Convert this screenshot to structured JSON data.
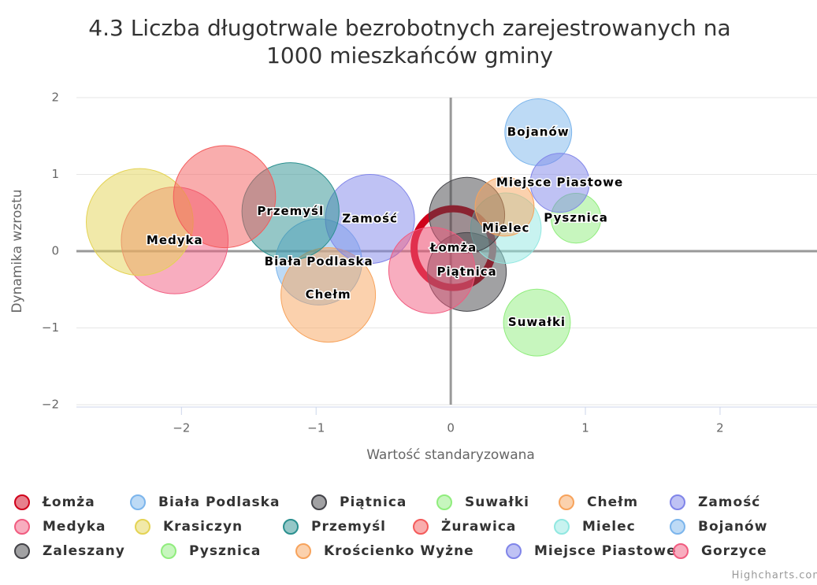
{
  "chart_data": {
    "type": "bubble",
    "title": [
      "4.3 Liczba długotrwale bezrobotnych zarejestrowanych na",
      "1000 mieszkańców gminy"
    ],
    "x_label": "Wartość standaryzowana",
    "y_label": "Dynamika wzrostu",
    "xlim": [
      -2.78,
      2.72
    ],
    "ylim": [
      -2,
      2
    ],
    "xticks": [
      {
        "value": -2,
        "label": "−2"
      },
      {
        "value": -1,
        "label": "−1"
      },
      0,
      1,
      2
    ],
    "yticks": [
      {
        "value": -2,
        "label": "−2"
      },
      {
        "value": -1,
        "label": "−1"
      },
      0,
      1,
      2
    ],
    "grid": true,
    "credits": "Highcharts.com",
    "series": [
      {
        "name": "Łomża",
        "color": "#d0021b",
        "x": 0.02,
        "y": 0.04,
        "z": 25,
        "data_label": true,
        "selected": true
      },
      {
        "name": "Biała Podlaska",
        "color": "#7cb5ec",
        "x": -0.98,
        "y": -0.14,
        "z": 30,
        "data_label": true
      },
      {
        "name": "Piątnica",
        "color": "#434348",
        "x": 0.12,
        "y": -0.27,
        "z": 25,
        "data_label": true
      },
      {
        "name": "Suwałki",
        "color": "#90ed7d",
        "x": 0.64,
        "y": -0.93,
        "z": 18,
        "data_label": true
      },
      {
        "name": "Chełm",
        "color": "#f7a35c",
        "x": -0.91,
        "y": -0.57,
        "z": 36,
        "data_label": true
      },
      {
        "name": "Zamość",
        "color": "#8085e9",
        "x": -0.6,
        "y": 0.42,
        "z": 32,
        "data_label": true
      },
      {
        "name": "Medyka",
        "color": "#f15c80",
        "x": -2.05,
        "y": 0.14,
        "z": 46,
        "data_label": true
      },
      {
        "name": "Krasiczyn",
        "color": "#e4d354",
        "x": -2.31,
        "y": 0.38,
        "z": 46,
        "data_label": false
      },
      {
        "name": "Przemyśl",
        "color": "#2b908f",
        "x": -1.19,
        "y": 0.52,
        "z": 38,
        "data_label": true
      },
      {
        "name": "Żurawica",
        "color": "#f45b5b",
        "x": -1.68,
        "y": 0.71,
        "z": 42,
        "data_label": false
      },
      {
        "name": "Mielec",
        "color": "#91e8e1",
        "x": 0.41,
        "y": 0.3,
        "z": 20,
        "data_label": true
      },
      {
        "name": "Bojanów",
        "color": "#7cb5ec",
        "x": 0.65,
        "y": 1.55,
        "z": 18,
        "data_label": true
      },
      {
        "name": "Zaleszany",
        "color": "#434348",
        "x": 0.12,
        "y": 0.47,
        "z": 23,
        "data_label": false
      },
      {
        "name": "Pysznica",
        "color": "#90ed7d",
        "x": 0.93,
        "y": 0.43,
        "z": 10,
        "data_label": true
      },
      {
        "name": "Krościenko Wyżne",
        "color": "#f7a35c",
        "x": 0.4,
        "y": 0.58,
        "z": 14,
        "data_label": false
      },
      {
        "name": "Miejsce Piastowe",
        "color": "#8085e9",
        "x": 0.81,
        "y": 0.89,
        "z": 14,
        "data_label": true
      },
      {
        "name": "Gorzyce",
        "color": "#f15c80",
        "x": -0.14,
        "y": -0.25,
        "z": 30,
        "data_label": false
      }
    ]
  }
}
